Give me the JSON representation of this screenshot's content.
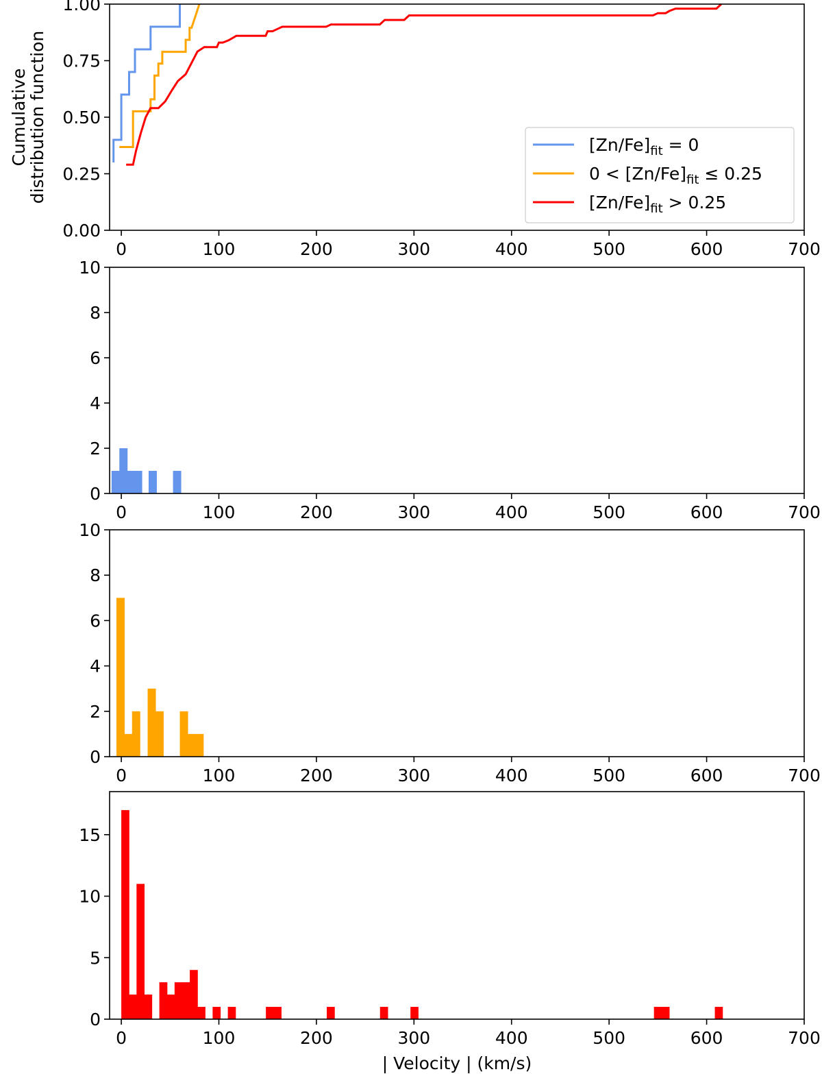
{
  "colors": {
    "blue": "#6495ED",
    "orange": "#FFA500",
    "red": "#FF0000"
  },
  "chart_data": [
    {
      "type": "line",
      "panel": "cdf",
      "ylabel": [
        "Cumulative",
        "distribution function"
      ],
      "xlabel": "",
      "xlim": [
        -12,
        700
      ],
      "ylim": [
        0,
        1.0
      ],
      "xticks": [
        "0",
        "100",
        "200",
        "300",
        "400",
        "500",
        "600",
        "700"
      ],
      "yticks": [
        "0.00",
        "0.25",
        "0.50",
        "0.75",
        "1.00"
      ],
      "legend_position": "center-right",
      "series": [
        {
          "name": "[Zn/Fe]fit = 0",
          "legend_main": "[Zn/Fe]",
          "legend_sub": "fit",
          "legend_tail": " = 0",
          "color": "#6495ED",
          "step": true,
          "x": [
            -8,
            -8,
            -5,
            -5,
            0,
            0,
            8,
            8,
            10,
            10,
            14,
            14,
            20,
            20,
            30,
            30,
            60,
            60
          ],
          "y": [
            0.3,
            0.4,
            0.4,
            0.4,
            0.4,
            0.6,
            0.6,
            0.7,
            0.7,
            0.7,
            0.7,
            0.8,
            0.8,
            0.8,
            0.8,
            0.9,
            0.9,
            1.0
          ]
        },
        {
          "name": "0 < [Zn/Fe]fit ≤ 0.25",
          "legend_main": "0 < [Zn/Fe]",
          "legend_sub": "fit",
          "legend_tail": " ≤ 0.25",
          "color": "#FFA500",
          "step": true,
          "x": [
            -2,
            -2,
            12,
            12,
            30,
            30,
            34,
            34,
            38,
            38,
            42,
            42,
            66,
            66,
            70,
            70,
            72,
            72,
            76,
            76,
            80
          ],
          "y": [
            0.368,
            0.368,
            0.368,
            0.526,
            0.526,
            0.579,
            0.579,
            0.684,
            0.684,
            0.737,
            0.737,
            0.789,
            0.789,
            0.842,
            0.842,
            0.895,
            0.895,
            0.895,
            0.947,
            0.947,
            1.0
          ]
        },
        {
          "name": "[Zn/Fe]fit > 0.25",
          "legend_main": "[Zn/Fe]",
          "legend_sub": "fit",
          "legend_tail": " > 0.25",
          "color": "#FF0000",
          "step": false,
          "x": [
            5,
            12,
            15,
            20,
            25,
            30,
            38,
            45,
            52,
            58,
            66,
            72,
            78,
            85,
            98,
            100,
            104,
            110,
            118,
            148,
            150,
            155,
            160,
            165,
            210,
            215,
            265,
            270,
            290,
            295,
            545,
            550,
            558,
            562,
            568,
            610,
            615
          ],
          "y": [
            0.29,
            0.29,
            0.35,
            0.43,
            0.5,
            0.54,
            0.54,
            0.57,
            0.62,
            0.66,
            0.69,
            0.74,
            0.79,
            0.81,
            0.81,
            0.83,
            0.83,
            0.84,
            0.86,
            0.86,
            0.88,
            0.88,
            0.89,
            0.9,
            0.9,
            0.91,
            0.91,
            0.93,
            0.93,
            0.95,
            0.95,
            0.96,
            0.96,
            0.97,
            0.98,
            0.98,
            1.0
          ]
        }
      ]
    },
    {
      "type": "bar",
      "panel": "hist-blue",
      "xlabel": "",
      "xlim": [
        -12,
        700
      ],
      "ylim": [
        0,
        10
      ],
      "xticks": [
        "0",
        "100",
        "200",
        "300",
        "400",
        "500",
        "600",
        "700"
      ],
      "yticks": [
        "0",
        "2",
        "4",
        "6",
        "8",
        "10"
      ],
      "bin_width": 8,
      "color": "#6495ED",
      "bins": [
        {
          "x": -10,
          "count": 1
        },
        {
          "x": -2,
          "count": 2
        },
        {
          "x": 6,
          "count": 1
        },
        {
          "x": 13,
          "count": 1
        },
        {
          "x": 28,
          "count": 1
        },
        {
          "x": 53,
          "count": 1
        }
      ]
    },
    {
      "type": "bar",
      "panel": "hist-orange",
      "xlabel": "",
      "xlim": [
        -12,
        700
      ],
      "ylim": [
        0,
        10
      ],
      "xticks": [
        "0",
        "100",
        "200",
        "300",
        "400",
        "500",
        "600",
        "700"
      ],
      "yticks": [
        "0",
        "2",
        "4",
        "6",
        "8",
        "10"
      ],
      "bin_width": 8,
      "color": "#FFA500",
      "bins": [
        {
          "x": -5,
          "count": 7
        },
        {
          "x": 3,
          "count": 1
        },
        {
          "x": 11,
          "count": 2
        },
        {
          "x": 27,
          "count": 3
        },
        {
          "x": 35,
          "count": 2
        },
        {
          "x": 60,
          "count": 2
        },
        {
          "x": 68,
          "count": 1
        },
        {
          "x": 76,
          "count": 1
        }
      ]
    },
    {
      "type": "bar",
      "panel": "hist-red",
      "xlabel": "| Velocity | (km/s)",
      "xlim": [
        -12,
        700
      ],
      "ylim": [
        0,
        18.5
      ],
      "xticks": [
        "0",
        "100",
        "200",
        "300",
        "400",
        "500",
        "600",
        "700"
      ],
      "yticks": [
        "0",
        "5",
        "10",
        "15"
      ],
      "bin_width": 7.8,
      "color": "#FF0000",
      "bins": [
        {
          "x": 0,
          "count": 17
        },
        {
          "x": 7.8,
          "count": 2
        },
        {
          "x": 15.6,
          "count": 11
        },
        {
          "x": 23.4,
          "count": 2
        },
        {
          "x": 39,
          "count": 3
        },
        {
          "x": 46.8,
          "count": 2
        },
        {
          "x": 54.6,
          "count": 3
        },
        {
          "x": 62.4,
          "count": 3
        },
        {
          "x": 70.2,
          "count": 4
        },
        {
          "x": 78,
          "count": 1
        },
        {
          "x": 93.6,
          "count": 1
        },
        {
          "x": 109.2,
          "count": 1
        },
        {
          "x": 148.2,
          "count": 1
        },
        {
          "x": 156,
          "count": 1
        },
        {
          "x": 210.6,
          "count": 1
        },
        {
          "x": 265.2,
          "count": 1
        },
        {
          "x": 296.4,
          "count": 1
        },
        {
          "x": 546,
          "count": 1
        },
        {
          "x": 553.8,
          "count": 1
        },
        {
          "x": 608.4,
          "count": 1
        }
      ]
    }
  ]
}
